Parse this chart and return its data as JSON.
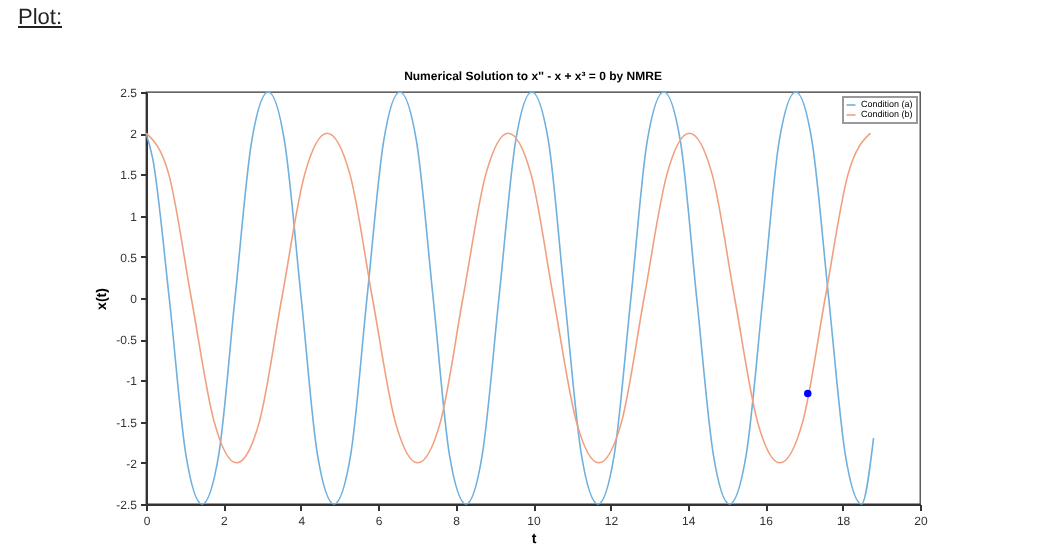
{
  "chart_data": {
    "type": "line",
    "title": "Numerical Solution to x'' - x + x³ = 0 by NMRE",
    "xlabel": "t",
    "ylabel": "x(t)",
    "annotations": [
      "Plot:"
    ],
    "legend": "top right",
    "xlim": [
      0,
      20
    ],
    "ylim": [
      -2.5,
      2.5
    ],
    "xticks": [
      0,
      2,
      4,
      6,
      8,
      10,
      12,
      14,
      16,
      18,
      20
    ],
    "yticks": [
      -2.5,
      -2,
      -1.5,
      -1,
      -0.5,
      0,
      0.5,
      1,
      1.5,
      2,
      2.5
    ],
    "series": [
      {
        "name": "Condition (a)",
        "color": "#6fb0de",
        "x": [
          0,
          0.17,
          0.6,
          1.03,
          1.45,
          1.88,
          2.3,
          2.73,
          3.16,
          3.58,
          4.01,
          4.43,
          4.86,
          5.29,
          5.71,
          6.14,
          6.56,
          6.99,
          7.42,
          7.84,
          8.27,
          8.69,
          9.12,
          9.55,
          9.97,
          10.4,
          10.82,
          11.25,
          11.68,
          12.1,
          12.53,
          12.95,
          13.38,
          13.81,
          14.23,
          14.66,
          15.08,
          15.51,
          15.94,
          16.36,
          16.79,
          17.21,
          17.64,
          18.07,
          18.49,
          18.8
        ],
        "values": [
          2,
          1.7,
          0,
          -1.9,
          -2.5,
          -1.9,
          0,
          1.9,
          2.5,
          1.9,
          0,
          -1.9,
          -2.5,
          -1.9,
          0,
          1.9,
          2.5,
          1.9,
          0,
          -1.9,
          -2.5,
          -1.9,
          0,
          1.9,
          2.5,
          1.9,
          0,
          -1.9,
          -2.5,
          -1.9,
          0,
          1.9,
          2.5,
          1.9,
          0,
          -1.9,
          -2.5,
          -1.9,
          0,
          1.9,
          2.5,
          1.9,
          0,
          -1.9,
          -2.5,
          -1.7
        ]
      },
      {
        "name": "Condition (b)",
        "color": "#f0a080",
        "x": [
          0,
          0.59,
          1.17,
          1.76,
          2.34,
          2.93,
          3.51,
          4.1,
          4.68,
          5.27,
          5.85,
          6.44,
          7.02,
          7.61,
          8.19,
          8.78,
          9.36,
          9.95,
          10.53,
          11.12,
          11.7,
          12.29,
          12.87,
          13.46,
          14.04,
          14.63,
          15.21,
          15.8,
          16.38,
          16.97,
          17.55,
          18.14,
          18.72
        ],
        "values": [
          2,
          1.5,
          0,
          -1.5,
          -2,
          -1.5,
          0,
          1.5,
          2,
          1.5,
          0,
          -1.5,
          -2,
          -1.5,
          0,
          1.5,
          2,
          1.5,
          0,
          -1.5,
          -2,
          -1.5,
          0,
          1.5,
          2,
          1.5,
          0,
          -1.5,
          -2,
          -1.5,
          0,
          1.5,
          2
        ]
      },
      {
        "type": "scatter",
        "color": "#0000ff",
        "x": [
          17.1
        ],
        "values": [
          -1.16
        ]
      }
    ]
  }
}
